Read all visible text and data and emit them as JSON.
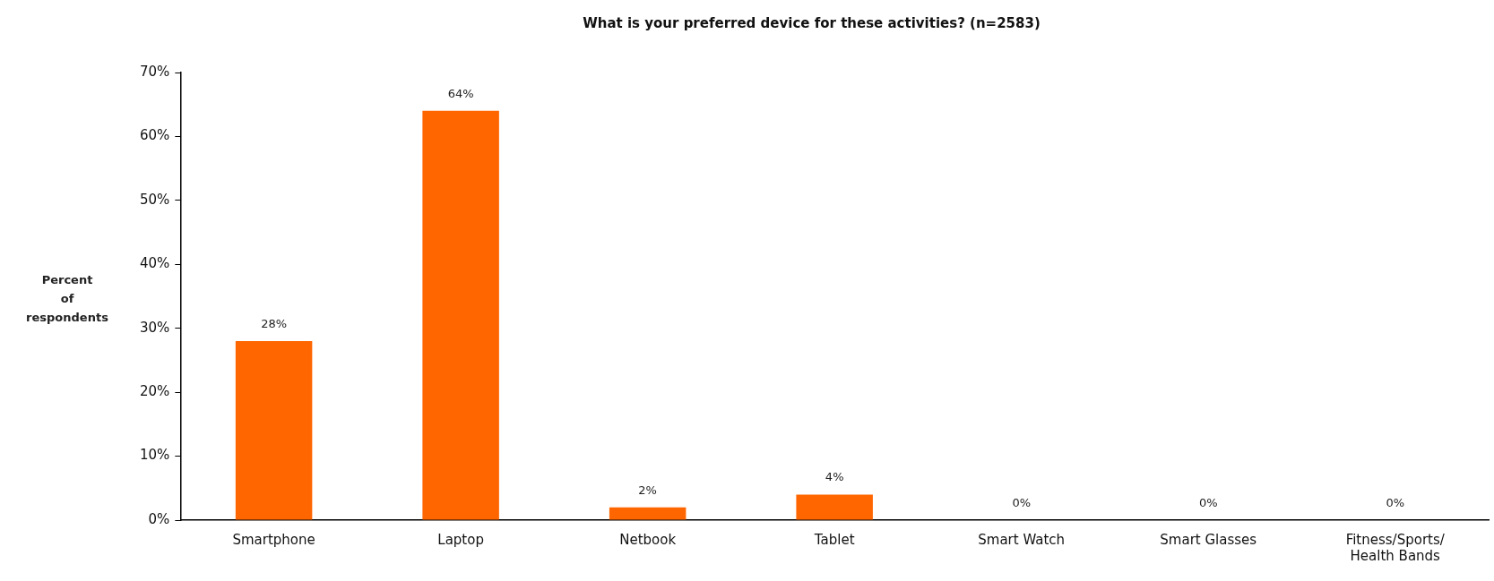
{
  "chart_data": {
    "type": "bar",
    "title": "What is your preferred device for these activities? (n=2583)",
    "ylabel": "Percent of respondents",
    "categories": [
      "Smartphone",
      "Laptop",
      "Netbook",
      "Tablet",
      "Smart Watch",
      "Smart Glasses",
      "Fitness/Sports/Health Bands"
    ],
    "values": [
      28,
      64,
      2,
      4,
      0,
      0,
      0
    ],
    "value_labels": [
      "28%",
      "64%",
      "2%",
      "4%",
      "0%",
      "0%",
      "0%"
    ],
    "color": "#ff6600",
    "ylim": [
      0,
      70
    ],
    "yticks": [
      {
        "value": 0,
        "label": "0%"
      },
      {
        "value": 10,
        "label": "10%"
      },
      {
        "value": 20,
        "label": "20%"
      },
      {
        "value": 30,
        "label": "30%"
      },
      {
        "value": 40,
        "label": "40%"
      },
      {
        "value": 50,
        "label": "50%"
      },
      {
        "value": 60,
        "label": "60%"
      },
      {
        "value": 70,
        "label": "70%"
      }
    ],
    "grid": false,
    "legend": false
  }
}
